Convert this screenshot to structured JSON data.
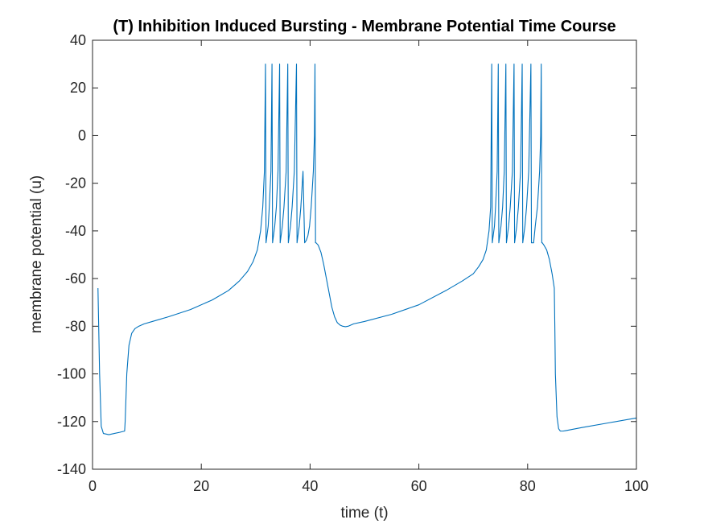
{
  "chart_data": {
    "type": "line",
    "title": "(T) Inhibition Induced Bursting - Membrane Potential Time Course",
    "xlabel": "time (t)",
    "ylabel": "membrane potential (u)",
    "xlim": [
      0,
      100
    ],
    "ylim": [
      -140,
      40
    ],
    "xticks": [
      0,
      20,
      40,
      60,
      80,
      100
    ],
    "xtick_labels": [
      "0",
      "20",
      "40",
      "60",
      "80",
      "100"
    ],
    "yticks": [
      -140,
      -120,
      -100,
      -80,
      -60,
      -40,
      -20,
      0,
      20,
      40
    ],
    "ytick_labels": [
      "-140",
      "-120",
      "-100",
      "-80",
      "-60",
      "-40",
      "-20",
      "0",
      "20",
      "40"
    ],
    "grid": false,
    "line_color": "#0072BD",
    "series": [
      {
        "x": [
          1.0,
          1.3,
          1.6,
          2.0,
          3.0,
          4.0,
          5.0,
          5.9,
          6.0,
          6.3,
          6.7,
          7.2,
          7.8,
          8.5,
          9.5,
          11,
          14,
          18,
          22,
          25,
          27,
          28.5,
          29.5,
          30.3,
          30.9,
          31.3,
          31.6,
          31.8,
          31.9,
          32.3,
          32.5,
          32.8,
          33.0,
          33.1,
          33.5,
          33.8,
          34.1,
          34.4,
          34.5,
          34.9,
          35.2,
          35.6,
          35.9,
          36.0,
          36.4,
          36.7,
          37.1,
          37.5,
          37.6,
          38.0,
          38.3,
          38.7,
          39.0,
          39.3,
          39.6,
          39.9,
          40.2,
          40.6,
          40.8,
          40.9,
          41.0,
          41.1,
          41.5,
          42.0,
          42.5,
          43.0,
          43.5,
          44.0,
          44.5,
          45.0,
          45.5,
          46.0,
          46.5,
          47.0,
          48.0,
          50,
          55,
          60,
          65,
          68,
          70,
          71,
          71.8,
          72.4,
          72.9,
          73.2,
          73.4,
          73.5,
          73.9,
          74.1,
          74.4,
          74.6,
          74.7,
          75.1,
          75.4,
          75.7,
          76.0,
          76.1,
          76.5,
          76.8,
          77.2,
          77.5,
          77.6,
          78.0,
          78.3,
          78.7,
          79.0,
          79.1,
          79.5,
          79.8,
          80.2,
          80.6,
          80.7,
          81.1,
          81.4,
          81.8,
          82.2,
          82.4,
          82.5,
          82.6,
          82.7,
          83.0,
          83.5,
          84.0,
          84.5,
          84.9,
          85.0,
          85.1,
          85.4,
          85.7,
          86.0,
          86.3,
          86.5,
          87,
          90,
          95,
          100
        ],
        "y": [
          -64,
          -100,
          -122,
          -125,
          -125.5,
          -125,
          -124.5,
          -124,
          -120,
          -100,
          -88,
          -83,
          -81,
          -80,
          -79,
          -78,
          -76,
          -73,
          -69,
          -65,
          -61,
          -57,
          -53,
          -48,
          -40,
          -30,
          -15,
          30,
          -45,
          -38,
          -30,
          -15,
          30,
          -45,
          -38,
          -30,
          -15,
          30,
          -45,
          -38,
          -30,
          -15,
          30,
          -45,
          -38,
          -30,
          -15,
          30,
          -45,
          -38,
          -30,
          -15,
          -45,
          -44,
          -42,
          -38,
          -30,
          -15,
          0,
          30,
          -45,
          -45,
          -46,
          -49,
          -54,
          -60,
          -66,
          -72,
          -76,
          -78.5,
          -79.5,
          -80,
          -80.2,
          -80,
          -79,
          -78,
          -75,
          -71,
          -65,
          -61,
          -58,
          -55,
          -52,
          -48,
          -40,
          -30,
          30,
          -45,
          -38,
          -30,
          -15,
          30,
          -45,
          -38,
          -30,
          -15,
          30,
          -45,
          -38,
          -30,
          -15,
          30,
          -45,
          -38,
          -30,
          -15,
          30,
          -45,
          -38,
          -30,
          -15,
          30,
          -45,
          -45,
          -38,
          -30,
          -15,
          0,
          30,
          -45,
          -45,
          -46,
          -48,
          -52,
          -58,
          -64,
          -80,
          -100,
          -118,
          -123,
          -124,
          -124,
          -124,
          -123.8,
          -122.5,
          -120.5,
          -118.5
        ]
      }
    ]
  }
}
